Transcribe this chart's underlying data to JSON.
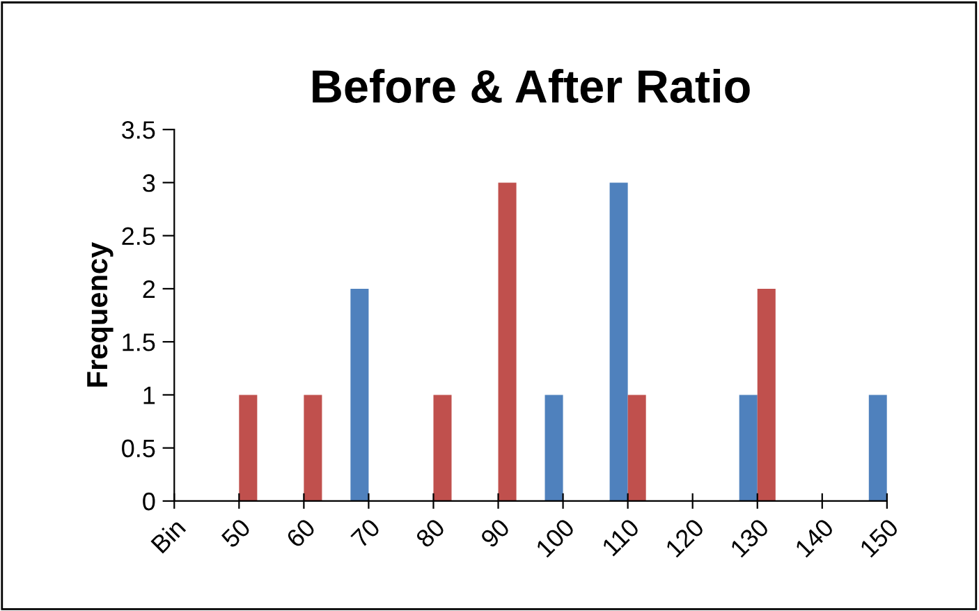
{
  "chart_data": {
    "type": "bar",
    "title": "Before & After Ratio",
    "ylabel": "Frequency",
    "categories": [
      "Bin",
      "50",
      "60",
      "70",
      "80",
      "90",
      "100",
      "110",
      "120",
      "130",
      "140",
      "150"
    ],
    "series": [
      {
        "color": "#4f81bd",
        "values": [
          0,
          0,
          0,
          2,
          0,
          0,
          1,
          3,
          0,
          1,
          0,
          1
        ]
      },
      {
        "color": "#c0504d",
        "values": [
          0,
          1,
          1,
          0,
          1,
          3,
          0,
          1,
          0,
          2,
          0,
          0
        ]
      }
    ],
    "ylim": [
      0,
      3.5
    ],
    "yticks": [
      0,
      0.5,
      1,
      1.5,
      2,
      2.5,
      3,
      3.5
    ],
    "grid": false,
    "legend": false
  }
}
